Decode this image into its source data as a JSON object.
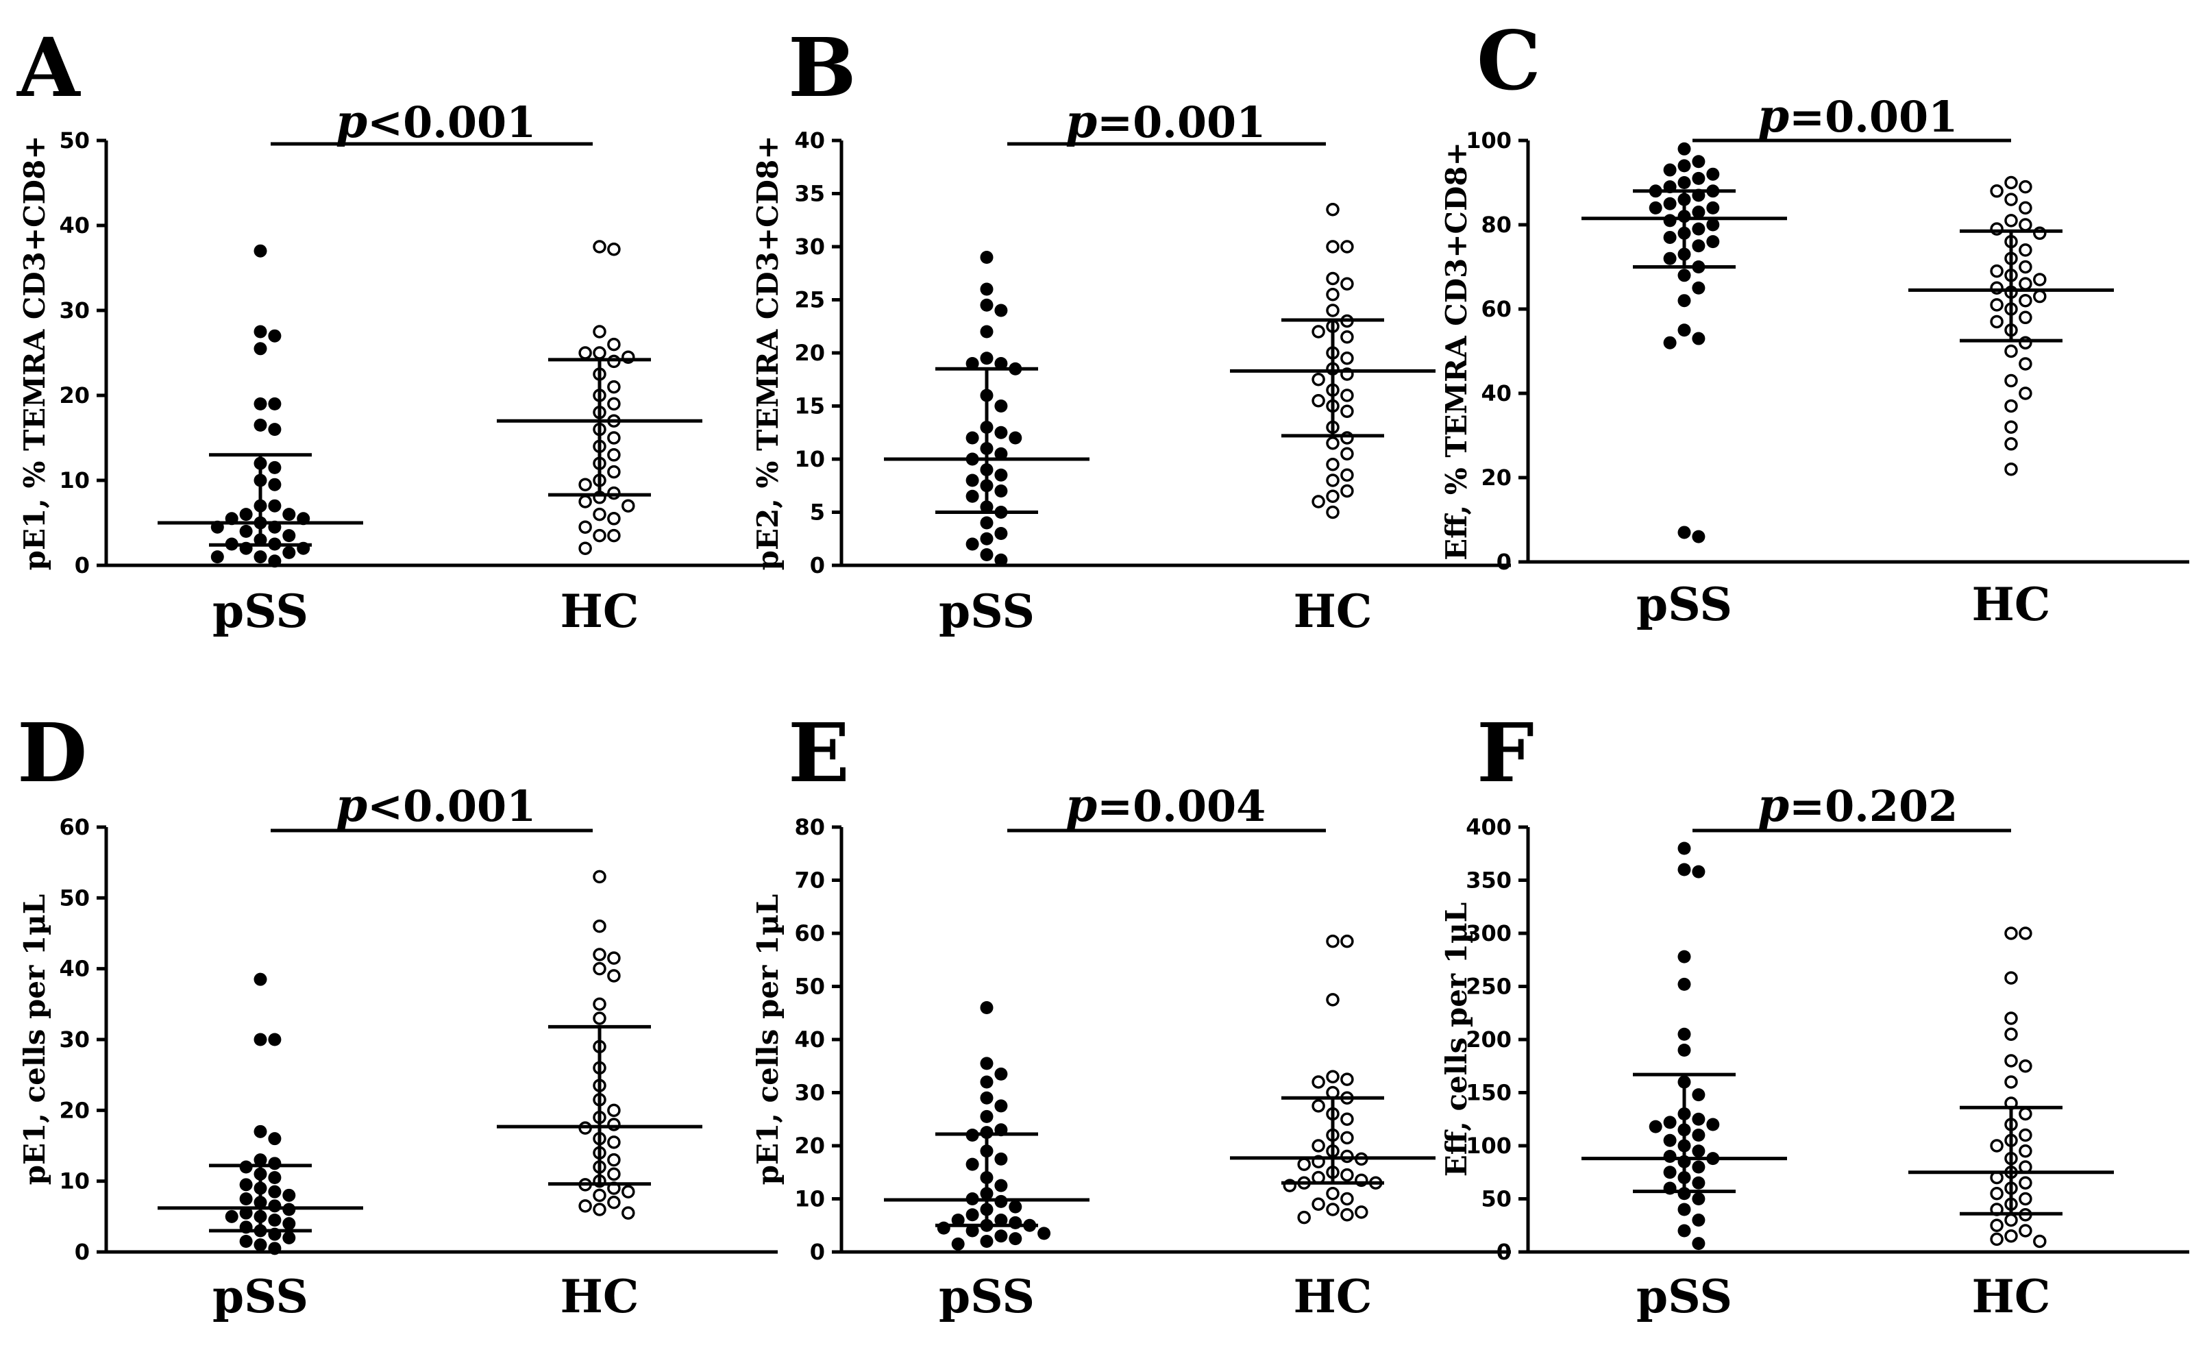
{
  "chart_data": [
    {
      "type": "scatter",
      "panel": "A",
      "ylabel": "pE1, % TEMRA CD3+CD8+",
      "ylim": [
        0,
        50
      ],
      "yticks": [
        0,
        10,
        20,
        30,
        40,
        50
      ],
      "categories": [
        "pSS",
        "HC"
      ],
      "p_symbol": "p",
      "p_text": "<0.001",
      "series": [
        {
          "name": "pSS",
          "marker": "filled",
          "median": 5,
          "q1": 2.4,
          "q3": 13,
          "values": [
            37,
            27.5,
            27,
            25.5,
            19,
            19,
            16.5,
            16,
            12,
            11.5,
            10,
            9.5,
            7,
            7,
            6,
            6,
            5.5,
            5.5,
            5,
            4.5,
            4.5,
            4,
            3.5,
            3,
            2.5,
            2.5,
            2,
            2,
            1.5,
            1,
            1,
            0.5
          ]
        },
        {
          "name": "HC",
          "marker": "open",
          "median": 17,
          "q1": 8.3,
          "q3": 24.2,
          "values": [
            37.5,
            37.2,
            27.5,
            26,
            25,
            25,
            24.5,
            24,
            22.5,
            21,
            20,
            19,
            18,
            17,
            16,
            15,
            14,
            13,
            12,
            11,
            10,
            9.5,
            8.5,
            8,
            7.5,
            7,
            6,
            5.5,
            4.5,
            3.5,
            3.5,
            2
          ]
        }
      ]
    },
    {
      "type": "scatter",
      "panel": "B",
      "ylabel": "pE2, % TEMRA CD3+CD8+",
      "ylim": [
        0,
        40
      ],
      "yticks": [
        0,
        5,
        10,
        15,
        20,
        25,
        30,
        35,
        40
      ],
      "categories": [
        "pSS",
        "HC"
      ],
      "p_symbol": "p",
      "p_text": "=0.001",
      "series": [
        {
          "name": "pSS",
          "marker": "filled",
          "median": 10,
          "q1": 5,
          "q3": 18.5,
          "values": [
            29,
            26,
            24.5,
            24,
            22,
            19.5,
            19,
            19,
            18.5,
            16,
            15,
            13,
            12.5,
            12,
            12,
            11,
            10.5,
            10,
            9,
            8.5,
            8,
            7.5,
            7,
            6.5,
            5.5,
            5,
            4,
            3,
            2.5,
            2,
            1,
            0.5
          ]
        },
        {
          "name": "HC",
          "marker": "open",
          "median": 18.3,
          "q1": 12.2,
          "q3": 23.1,
          "values": [
            33.5,
            30,
            30,
            27,
            26.5,
            25.5,
            24,
            23,
            22.5,
            22,
            21.5,
            20,
            19.5,
            18.5,
            18,
            17.5,
            16.5,
            16,
            15.5,
            15,
            14.5,
            13,
            12,
            11.5,
            10.5,
            9.5,
            8.5,
            8,
            7,
            6.5,
            6,
            5
          ]
        }
      ]
    },
    {
      "type": "scatter",
      "panel": "C",
      "ylabel": "Eff, % TEMRA CD3+CD8+",
      "ylim": [
        0,
        100
      ],
      "yticks": [
        0,
        20,
        40,
        60,
        80,
        100
      ],
      "categories": [
        "pSS",
        "HC"
      ],
      "p_symbol": "p",
      "p_text": "=0.001",
      "series": [
        {
          "name": "pSS",
          "marker": "filled",
          "median": 81.5,
          "q1": 70,
          "q3": 88,
          "values": [
            98,
            95,
            94,
            93,
            92,
            91,
            90,
            89,
            88,
            88,
            87,
            86,
            85,
            84,
            84,
            83,
            82,
            81,
            80,
            79,
            78,
            77,
            76,
            75,
            73,
            72,
            70,
            68,
            65,
            62,
            55,
            53,
            52,
            7,
            6
          ]
        },
        {
          "name": "HC",
          "marker": "open",
          "median": 64.5,
          "q1": 52.5,
          "q3": 78.5,
          "values": [
            90,
            89,
            88,
            86,
            84,
            81,
            80,
            79,
            78,
            76,
            74,
            72,
            70,
            69,
            68,
            67,
            66,
            65,
            64,
            63,
            62,
            61,
            60,
            58,
            57,
            55,
            52,
            50,
            47,
            43,
            40,
            37,
            32,
            28,
            22
          ]
        }
      ]
    },
    {
      "type": "scatter",
      "panel": "D",
      "ylabel": "pE1, cells per 1µL",
      "ylim": [
        0,
        60
      ],
      "yticks": [
        0,
        10,
        20,
        30,
        40,
        50,
        60
      ],
      "categories": [
        "pSS",
        "HC"
      ],
      "p_symbol": "p",
      "p_text": "<0.001",
      "series": [
        {
          "name": "pSS",
          "marker": "filled",
          "median": 6.2,
          "q1": 3,
          "q3": 12.2,
          "values": [
            38.5,
            30,
            30,
            17,
            16,
            13,
            12.5,
            12,
            11,
            10.5,
            9.5,
            9,
            8.5,
            8,
            7.5,
            7,
            6.5,
            6,
            5.5,
            5,
            5,
            4.5,
            4,
            3.5,
            3,
            2.5,
            2,
            1.5,
            1,
            0.5
          ]
        },
        {
          "name": "HC",
          "marker": "open",
          "median": 17.7,
          "q1": 9.6,
          "q3": 31.8,
          "values": [
            53,
            46,
            42,
            41.5,
            40,
            39,
            35,
            33,
            29,
            26,
            23.5,
            21.5,
            20,
            19,
            18,
            17.5,
            16,
            15.5,
            14,
            13,
            12,
            11,
            10,
            9.5,
            9,
            8.5,
            8,
            7,
            6.5,
            6,
            5.5
          ]
        }
      ]
    },
    {
      "type": "scatter",
      "panel": "E",
      "ylabel": "pE1, cells per 1µL",
      "ylim": [
        0,
        80
      ],
      "yticks": [
        0,
        10,
        20,
        30,
        40,
        50,
        60,
        70,
        80
      ],
      "categories": [
        "pSS",
        "HC"
      ],
      "p_symbol": "p",
      "p_text": "=0.004",
      "series": [
        {
          "name": "pSS",
          "marker": "filled",
          "median": 9.8,
          "q1": 5,
          "q3": 22.2,
          "values": [
            46,
            35.5,
            33.5,
            32,
            29,
            27.5,
            25.5,
            23,
            22.5,
            22,
            19,
            17.5,
            16.5,
            14,
            12.5,
            11,
            10,
            9.5,
            8.5,
            8,
            7,
            6,
            6,
            5.5,
            5,
            5,
            4.5,
            4,
            3.5,
            3,
            2.5,
            2,
            1.5
          ]
        },
        {
          "name": "HC",
          "marker": "open",
          "median": 17.7,
          "q1": 13,
          "q3": 29,
          "values": [
            58.5,
            58.5,
            47.5,
            33,
            32.5,
            32,
            30,
            29,
            27.5,
            26,
            25,
            22,
            21.5,
            20,
            19,
            18,
            17.5,
            17,
            16.5,
            15,
            14.5,
            14,
            13.5,
            13,
            13,
            12.5,
            11,
            10,
            9,
            8,
            7.5,
            7,
            6.5
          ]
        }
      ]
    },
    {
      "type": "scatter",
      "panel": "F",
      "ylabel": "Eff, cells per 1µL",
      "ylim": [
        0,
        400
      ],
      "yticks": [
        0,
        50,
        100,
        150,
        200,
        250,
        300,
        350,
        400
      ],
      "categories": [
        "pSS",
        "HC"
      ],
      "p_symbol": "p",
      "p_text": "=0.202",
      "series": [
        {
          "name": "pSS",
          "marker": "filled",
          "median": 88,
          "q1": 57,
          "q3": 167,
          "values": [
            380,
            360,
            358,
            278,
            252,
            205,
            190,
            160,
            148,
            130,
            125,
            122,
            120,
            118,
            115,
            110,
            105,
            100,
            95,
            90,
            88,
            85,
            80,
            75,
            70,
            65,
            60,
            55,
            50,
            40,
            30,
            20,
            8
          ]
        },
        {
          "name": "HC",
          "marker": "open",
          "median": 75,
          "q1": 36,
          "q3": 136,
          "values": [
            300,
            300,
            258,
            220,
            205,
            180,
            175,
            160,
            140,
            130,
            120,
            110,
            105,
            100,
            95,
            88,
            80,
            75,
            70,
            65,
            60,
            55,
            50,
            45,
            40,
            35,
            30,
            25,
            20,
            15,
            12,
            10
          ]
        }
      ]
    }
  ]
}
